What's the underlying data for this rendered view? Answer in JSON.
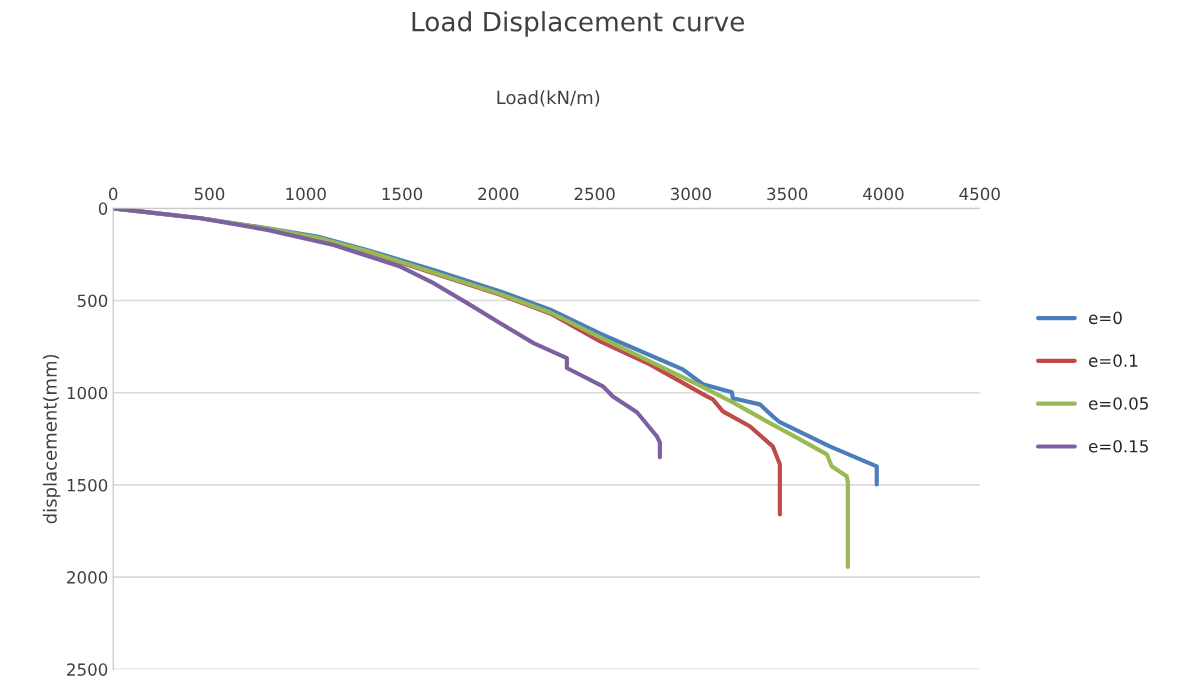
{
  "chart_data": {
    "type": "line",
    "title": "Load Displacement curve",
    "xlabel": "Load(kN/m)",
    "ylabel": "displacement(mm)",
    "xlim": [
      0,
      4500
    ],
    "xticks": [
      0,
      500,
      1000,
      1500,
      2000,
      2500,
      3000,
      3500,
      4000,
      4500
    ],
    "ylim": [
      2500,
      0
    ],
    "yticks": [
      0,
      500,
      1000,
      1500,
      2000,
      2500
    ],
    "grid": "y",
    "legend": "right",
    "marker": "none",
    "line_style": "solid",
    "series": [
      {
        "name": "e=0",
        "color": "#4a7ebb",
        "x": [
          0,
          454,
          801,
          1060,
          1318,
          1664,
          2010,
          2270,
          2529,
          2958,
          3062,
          3213,
          3218,
          3358,
          3425,
          3462,
          3721,
          3965,
          3965
        ],
        "values": [
          0,
          54,
          108,
          153,
          226,
          334,
          451,
          550,
          680,
          873,
          954,
          998,
          1030,
          1063,
          1128,
          1160,
          1291,
          1399,
          1497
        ]
      },
      {
        "name": "e=0.1",
        "color": "#be4b48",
        "x": [
          1060,
          1318,
          1664,
          2010,
          2270,
          2529,
          2787,
          3083,
          3114,
          3166,
          3306,
          3425,
          3440,
          3462,
          3462
        ],
        "values": [
          162,
          235,
          352,
          469,
          570,
          722,
          846,
          1020,
          1036,
          1101,
          1182,
          1291,
          1330,
          1388,
          1660
        ]
      },
      {
        "name": "e=0.05",
        "color": "#98b954",
        "x": [
          0,
          454,
          801,
          1060,
          1318,
          1664,
          2010,
          2270,
          2529,
          2787,
          3031,
          3218,
          3394,
          3566,
          3706,
          3731,
          3809,
          3815,
          3815
        ],
        "values": [
          0,
          54,
          110,
          160,
          232,
          348,
          465,
          565,
          700,
          830,
          954,
          1052,
          1155,
          1253,
          1334,
          1399,
          1453,
          1486,
          1945
        ]
      },
      {
        "name": "e=0.15",
        "color": "#7d60a0",
        "x": [
          0,
          454,
          801,
          1145,
          1491,
          1664,
          1839,
          2010,
          2183,
          2356,
          2356,
          2543,
          2595,
          2720,
          2823,
          2839,
          2839
        ],
        "values": [
          0,
          54,
          117,
          199,
          316,
          406,
          514,
          623,
          731,
          812,
          866,
          965,
          1020,
          1106,
          1236,
          1269,
          1350
        ]
      }
    ]
  }
}
